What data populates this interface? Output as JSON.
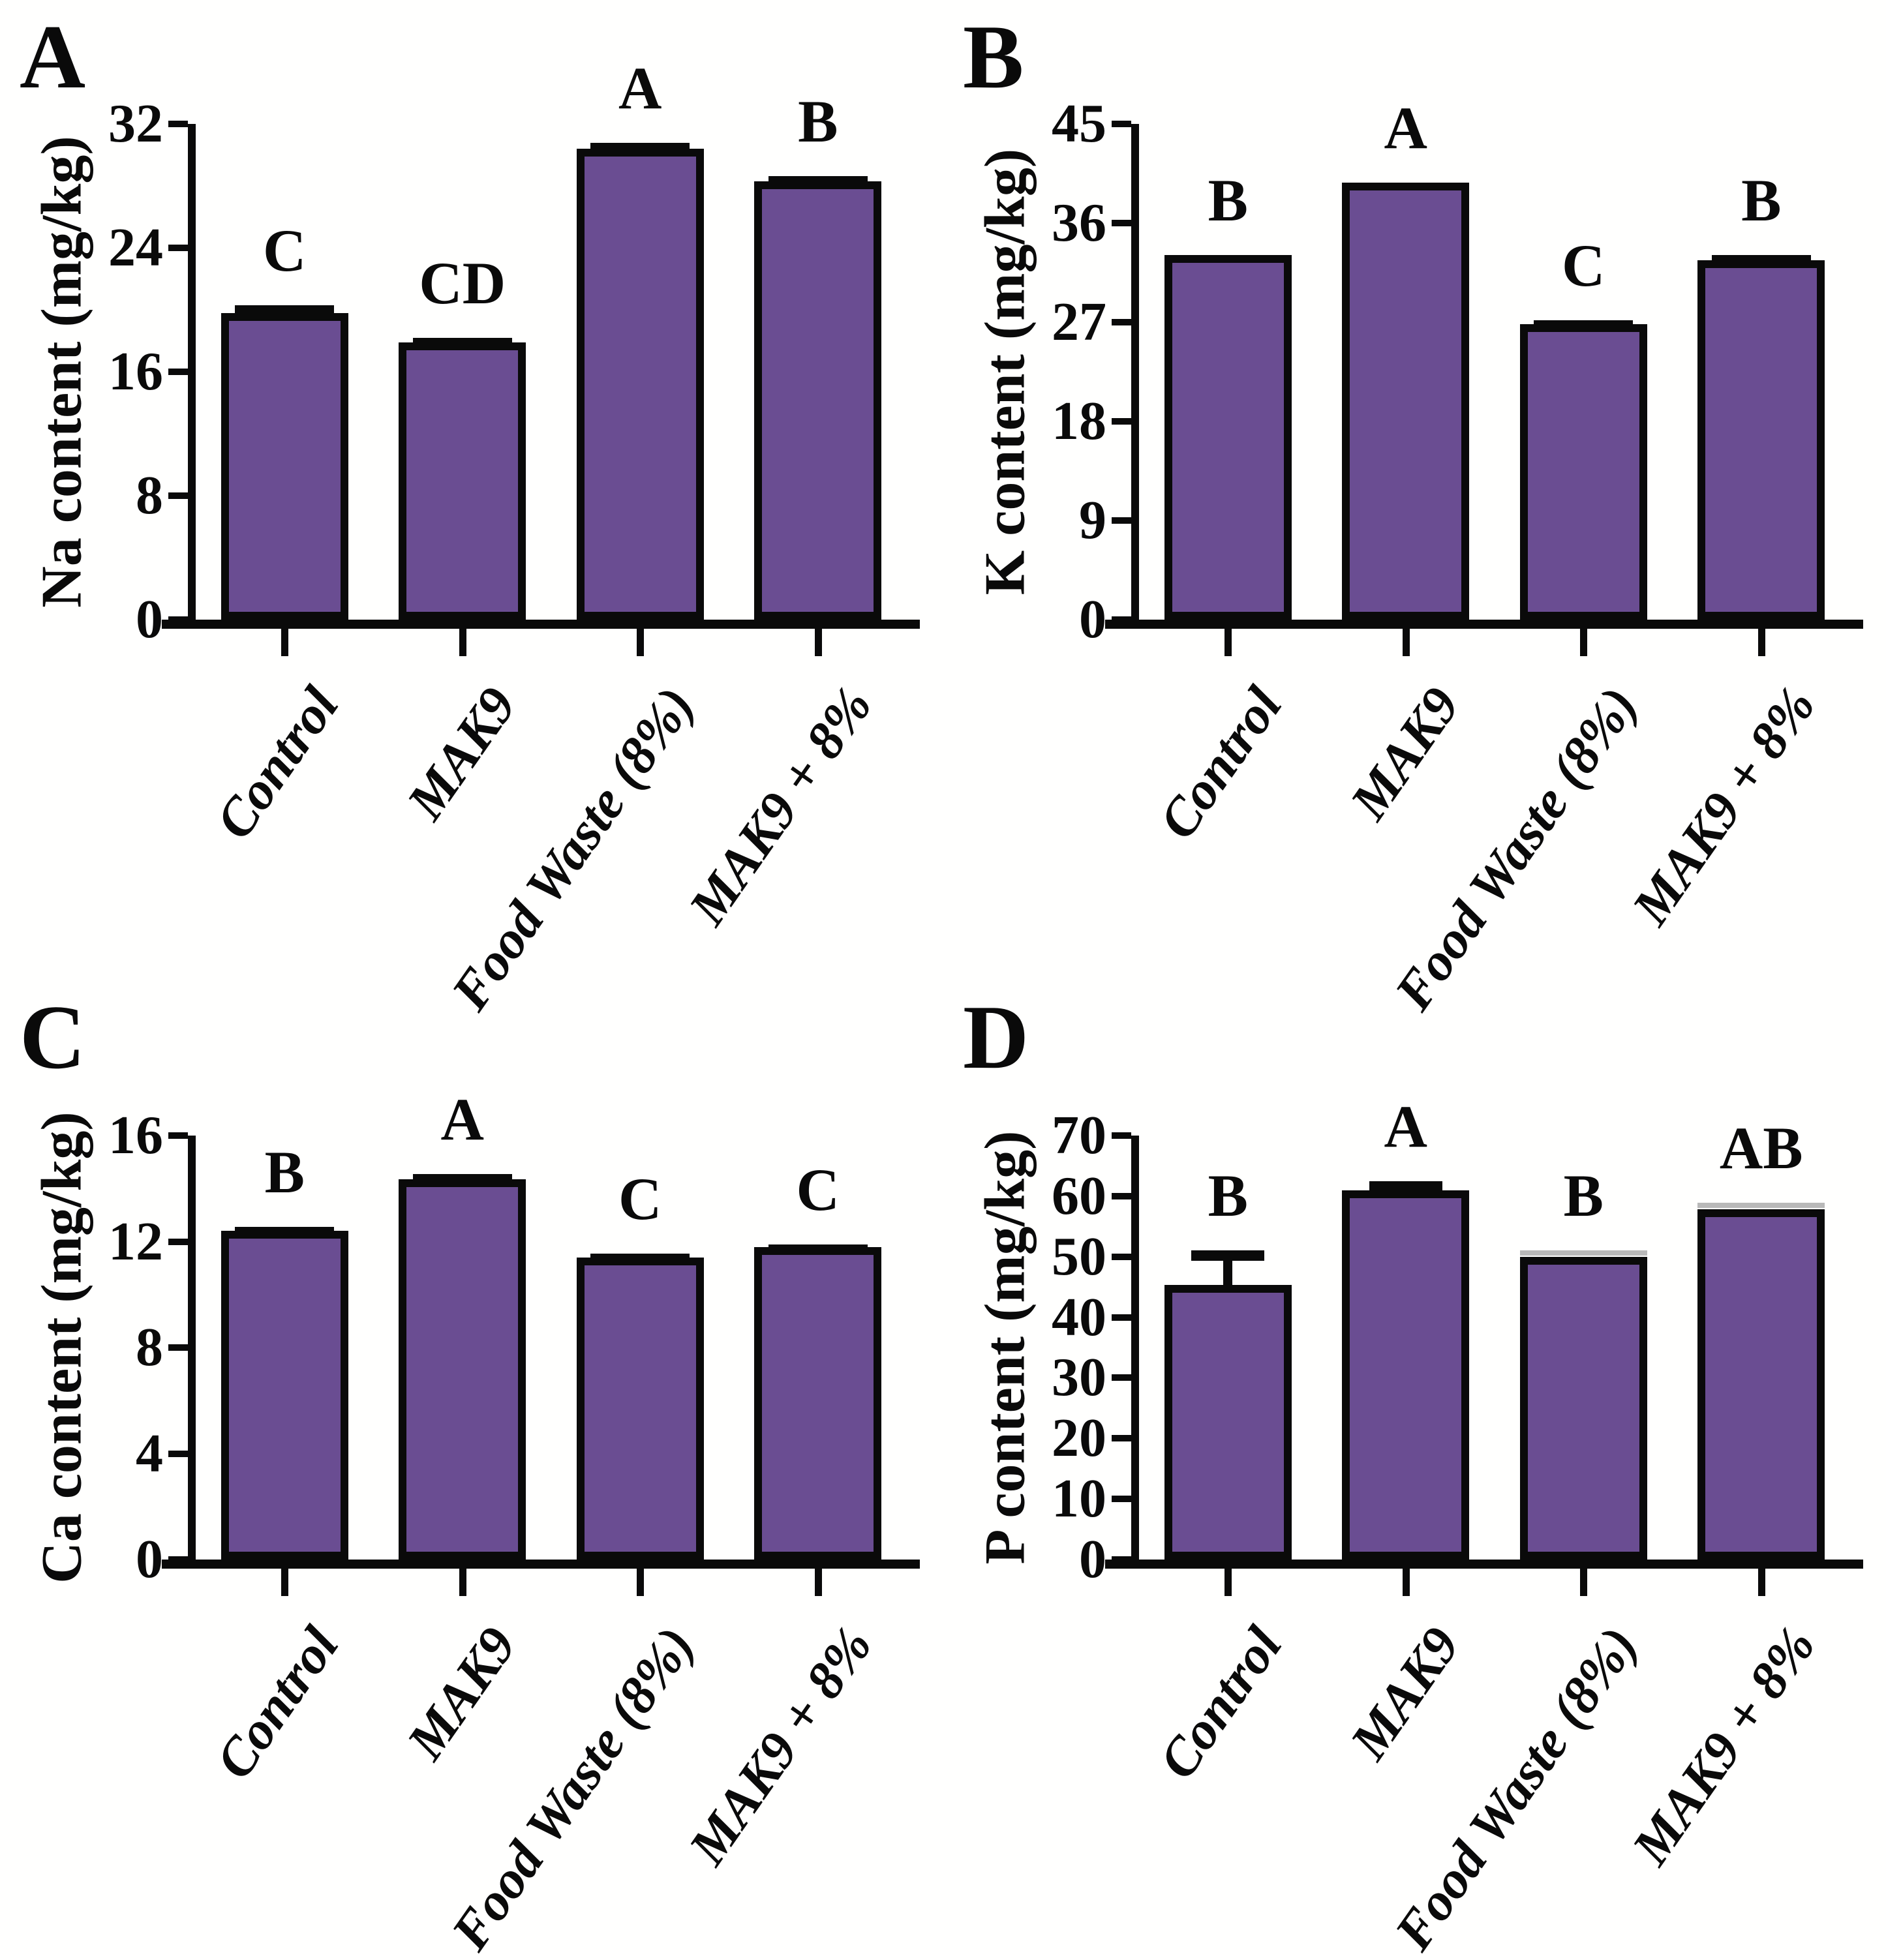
{
  "bar_fill_color": "#6A4D92",
  "axis_color": "#0a0a0a",
  "categories": [
    "Control",
    "MAK9",
    "Food Waste (8%)",
    "MAK9 + 8%"
  ],
  "chart_data": [
    {
      "type": "bar",
      "panel_letter": "A",
      "ylabel": "Na content (mg/kg)",
      "xlabel": "",
      "ylim": [
        0,
        32
      ],
      "y_ticks": [
        32,
        24,
        16,
        8,
        0
      ],
      "grid": false,
      "legend": "none",
      "categories": [
        "Control",
        "MAK9",
        "Food Waste (8%)",
        "MAK9 + 8%"
      ],
      "values": [
        19.8,
        17.9,
        30.4,
        28.3
      ],
      "errors": [
        0.5,
        0.3,
        0.4,
        0.35
      ],
      "error_styles": [
        "black",
        "black",
        "black",
        "black"
      ],
      "sig_letters": [
        "C",
        "CD",
        "A",
        "B"
      ]
    },
    {
      "type": "bar",
      "panel_letter": "B",
      "ylabel": "K content (mg/kg)",
      "xlabel": "",
      "ylim": [
        0,
        45
      ],
      "y_ticks": [
        45,
        36,
        27,
        18,
        9,
        0
      ],
      "grid": false,
      "legend": "none",
      "categories": [
        "Control",
        "MAK9",
        "Food Waste (8%)",
        "MAK9 + 8%"
      ],
      "values": [
        33.1,
        39.7,
        26.8,
        32.6
      ],
      "errors": [
        0,
        0,
        0.35,
        0.5
      ],
      "error_styles": [
        "none",
        "none",
        "black",
        "black"
      ],
      "sig_letters": [
        "B",
        "A",
        "C",
        "B"
      ]
    },
    {
      "type": "bar",
      "panel_letter": "C",
      "ylabel": "Ca content (mg/kg)",
      "xlabel": "",
      "ylim": [
        0,
        16
      ],
      "y_ticks": [
        16,
        12,
        8,
        4,
        0
      ],
      "grid": false,
      "legend": "none",
      "categories": [
        "Control",
        "MAK9",
        "Food Waste (8%)",
        "MAK9 + 8%"
      ],
      "values": [
        12.4,
        14.35,
        11.4,
        11.8
      ],
      "errors": [
        0.15,
        0.2,
        0.15,
        0.1
      ],
      "error_styles": [
        "black",
        "black",
        "black",
        "black"
      ],
      "sig_letters": [
        "B",
        "A",
        "C",
        "C"
      ]
    },
    {
      "type": "bar",
      "panel_letter": "D",
      "ylabel": "P content (mg/kg)",
      "xlabel": "",
      "ylim": [
        0,
        70
      ],
      "y_ticks": [
        70,
        60,
        50,
        40,
        30,
        20,
        10,
        0
      ],
      "grid": false,
      "legend": "none",
      "categories": [
        "Control",
        "MAK9",
        "Food Waste (8%)",
        "MAK9 + 8%"
      ],
      "values": [
        45.3,
        61.0,
        50.0,
        57.8
      ],
      "errors": [
        5.8,
        1.5,
        0.6,
        0.5
      ],
      "error_styles": [
        "tbar",
        "tbar",
        "grey",
        "grey"
      ],
      "sig_letters": [
        "B",
        "A",
        "B",
        "AB"
      ]
    }
  ]
}
